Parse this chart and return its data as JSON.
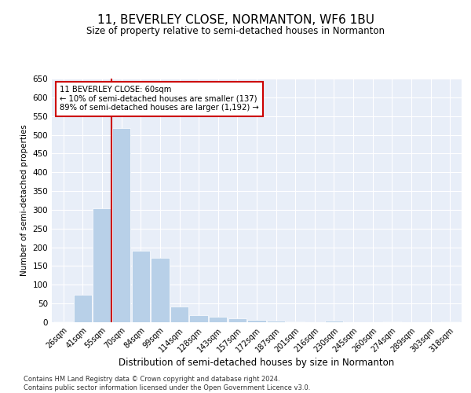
{
  "title": "11, BEVERLEY CLOSE, NORMANTON, WF6 1BU",
  "subtitle": "Size of property relative to semi-detached houses in Normanton",
  "xlabel": "Distribution of semi-detached houses by size in Normanton",
  "ylabel": "Number of semi-detached properties",
  "categories": [
    "26sqm",
    "41sqm",
    "55sqm",
    "70sqm",
    "84sqm",
    "99sqm",
    "114sqm",
    "128sqm",
    "143sqm",
    "157sqm",
    "172sqm",
    "187sqm",
    "201sqm",
    "216sqm",
    "230sqm",
    "245sqm",
    "260sqm",
    "274sqm",
    "289sqm",
    "303sqm",
    "318sqm"
  ],
  "values": [
    3,
    73,
    305,
    517,
    190,
    172,
    42,
    18,
    15,
    10,
    7,
    4,
    2,
    0,
    5,
    0,
    0,
    2,
    0,
    0,
    2
  ],
  "bar_color": "#b8d0e8",
  "highlight_line_color": "#cc0000",
  "highlight_line_index": 2,
  "annotation_text": "11 BEVERLEY CLOSE: 60sqm\n← 10% of semi-detached houses are smaller (137)\n89% of semi-detached houses are larger (1,192) →",
  "annotation_box_facecolor": "#ffffff",
  "annotation_box_edgecolor": "#cc0000",
  "ylim": [
    0,
    650
  ],
  "yticks": [
    0,
    50,
    100,
    150,
    200,
    250,
    300,
    350,
    400,
    450,
    500,
    550,
    600,
    650
  ],
  "background_color": "#e8eef8",
  "footer_line1": "Contains HM Land Registry data © Crown copyright and database right 2024.",
  "footer_line2": "Contains public sector information licensed under the Open Government Licence v3.0."
}
